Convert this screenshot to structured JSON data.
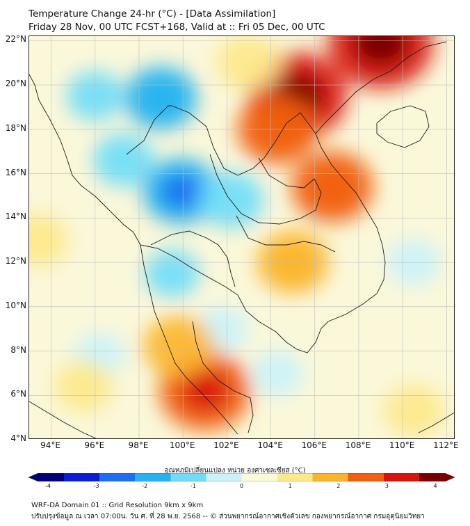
{
  "header": {
    "title_line1": "Temperature Change 24-hr (°C) - [Data Assimilation]",
    "title_line2": "Friday 28 Nov, 00 UTC FCST+168, Valid at :: Fri 05 Dec, 00 UTC"
  },
  "map": {
    "lat_labels": [
      "22°N",
      "20°N",
      "18°N",
      "16°N",
      "14°N",
      "12°N",
      "10°N",
      "8°N",
      "6°N",
      "4°N"
    ],
    "lon_labels": [
      "94°E",
      "96°E",
      "98°E",
      "100°E",
      "102°E",
      "104°E",
      "106°E",
      "108°E",
      "110°E",
      "112°E"
    ],
    "extent": {
      "lon_min": 93,
      "lon_max": 112.4,
      "lat_min": 4,
      "lat_max": 22.2
    },
    "field_blobs": [
      {
        "lon": 99.0,
        "lat": 19.4,
        "value": -1.6
      },
      {
        "lon": 99.9,
        "lat": 15.2,
        "value": -1.8
      },
      {
        "lon": 97.3,
        "lat": 16.6,
        "value": -1.0
      },
      {
        "lon": 102.2,
        "lat": 14.8,
        "value": -1.2
      },
      {
        "lon": 96.0,
        "lat": 19.5,
        "value": -0.8
      },
      {
        "lon": 99.5,
        "lat": 11.5,
        "value": -0.7
      },
      {
        "lon": 101.8,
        "lat": 9.0,
        "value": -0.5
      },
      {
        "lon": 96.2,
        "lat": 7.8,
        "value": -0.5
      },
      {
        "lon": 110.5,
        "lat": 12.0,
        "value": -0.6
      },
      {
        "lon": 104.3,
        "lat": 7.0,
        "value": -0.5
      },
      {
        "lon": 105.2,
        "lat": 19.5,
        "value": 3.0
      },
      {
        "lon": 109.0,
        "lat": 21.9,
        "value": 3.3
      },
      {
        "lon": 104.3,
        "lat": 18.0,
        "value": 2.0
      },
      {
        "lon": 106.8,
        "lat": 15.4,
        "value": 2.1
      },
      {
        "lon": 105.0,
        "lat": 12.0,
        "value": 1.6
      },
      {
        "lon": 101.0,
        "lat": 6.2,
        "value": 2.6
      },
      {
        "lon": 99.8,
        "lat": 8.2,
        "value": 1.5
      },
      {
        "lon": 95.5,
        "lat": 6.4,
        "value": 0.9
      },
      {
        "lon": 110.5,
        "lat": 5.3,
        "value": 1.0
      },
      {
        "lon": 93.4,
        "lat": 13.0,
        "value": 1.0
      },
      {
        "lon": 103.0,
        "lat": 21.0,
        "value": 1.2
      }
    ]
  },
  "colorbar": {
    "title": "อุณหภูมิเปลี่ยนแปลง หน่วย องศาเซลเซียส (°C)",
    "min": -4,
    "max": 4,
    "tick_labels": [
      "-4",
      "-3",
      "-2",
      "-1",
      "0",
      "1",
      "2",
      "3",
      "4"
    ],
    "colors": [
      "#00007a",
      "#0a1fd0",
      "#1e6ff0",
      "#25b3f0",
      "#6fdcf8",
      "#c9f2fb",
      "#fbfbd8",
      "#fde88a",
      "#fbb52c",
      "#f16010",
      "#d8140e",
      "#7a0000"
    ]
  },
  "footer": {
    "line1": "WRF-DA Domain 01 :: Grid Resolution 9km x 9km",
    "line2": "ปรับปรุงข้อมูล ณ เวลา 07:00น. วัน ศ. ที่ 28 พ.ย. 2568 -- © ส่วนพยากรณ์อากาศเชิงตัวเลข กองพยากรณ์อากาศ กรมอุตุนิยมวิทยา"
  }
}
